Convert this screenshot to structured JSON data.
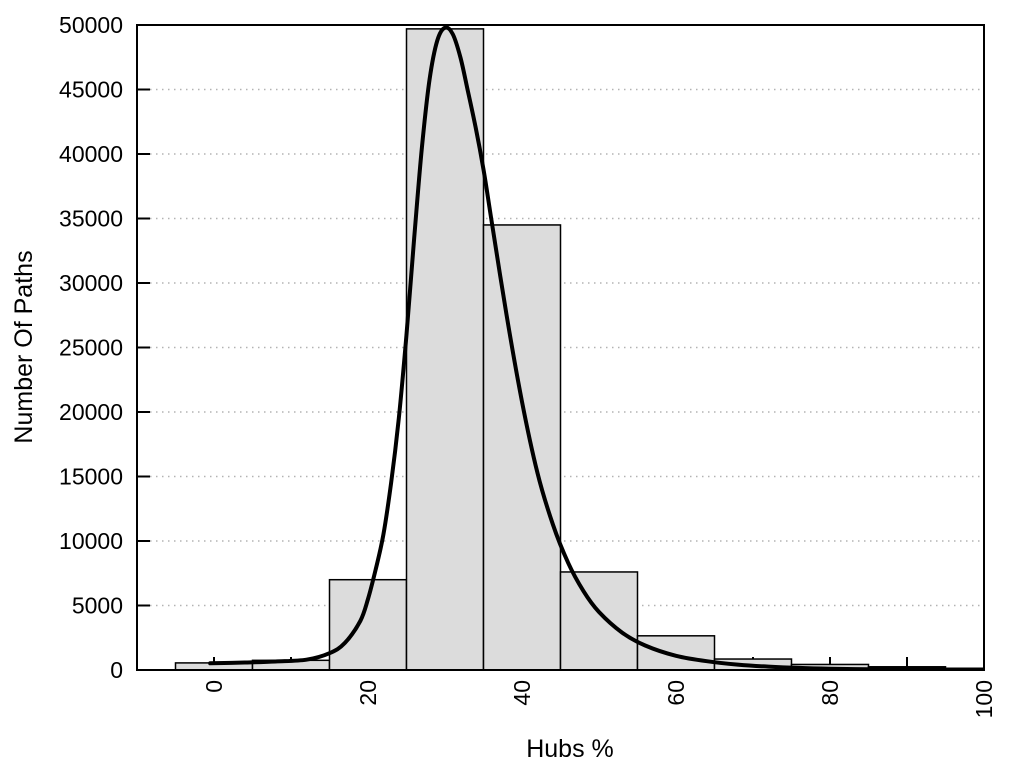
{
  "chart_data": {
    "type": "bar",
    "subtype": "histogram_with_density_curve",
    "title": "",
    "xlabel": "Hubs %",
    "ylabel": "Number Of Paths",
    "xlim": [
      -10,
      100
    ],
    "ylim": [
      0,
      50000
    ],
    "x_major_ticks": [
      0,
      20,
      40,
      60,
      80,
      100
    ],
    "x_minor_ticks": [
      10,
      30,
      50,
      70,
      90
    ],
    "y_ticks": [
      0,
      5000,
      10000,
      15000,
      20000,
      25000,
      30000,
      35000,
      40000,
      45000,
      50000
    ],
    "grid": "horizontal dotted lines at labeled y ticks, no vertical grid",
    "legend": "none",
    "bars": {
      "bin_width": 10,
      "centers": [
        0,
        10,
        20,
        30,
        40,
        50,
        60,
        70,
        80,
        90,
        100
      ],
      "values": [
        550,
        750,
        7000,
        49700,
        34500,
        7600,
        2650,
        850,
        430,
        250,
        100
      ]
    },
    "density_curve": {
      "x": [
        -0.5,
        4,
        8,
        12,
        15,
        17,
        19,
        20,
        21,
        22,
        23,
        24,
        25,
        26,
        27,
        28,
        29,
        30,
        31,
        32,
        33,
        34,
        35,
        36,
        38,
        40,
        42,
        44,
        46,
        48,
        50,
        53,
        56,
        60,
        64,
        68,
        72,
        76,
        80,
        85,
        90,
        95,
        100
      ],
      "y": [
        520,
        580,
        660,
        800,
        1300,
        2100,
        3800,
        5500,
        7800,
        10500,
        14500,
        19500,
        26000,
        33500,
        40500,
        45800,
        48800,
        49800,
        49300,
        47500,
        44800,
        42000,
        38800,
        35000,
        27500,
        20800,
        15300,
        11300,
        8300,
        6100,
        4500,
        2900,
        1900,
        1100,
        680,
        420,
        260,
        160,
        100,
        60,
        45,
        40,
        35
      ]
    },
    "colors": {
      "background": "#ffffff",
      "bar_fill": "#dcdcdc",
      "bar_border": "#000000",
      "curve": "#000000",
      "grid": "#b3b3b3",
      "axis": "#000000",
      "text": "#000000"
    }
  }
}
